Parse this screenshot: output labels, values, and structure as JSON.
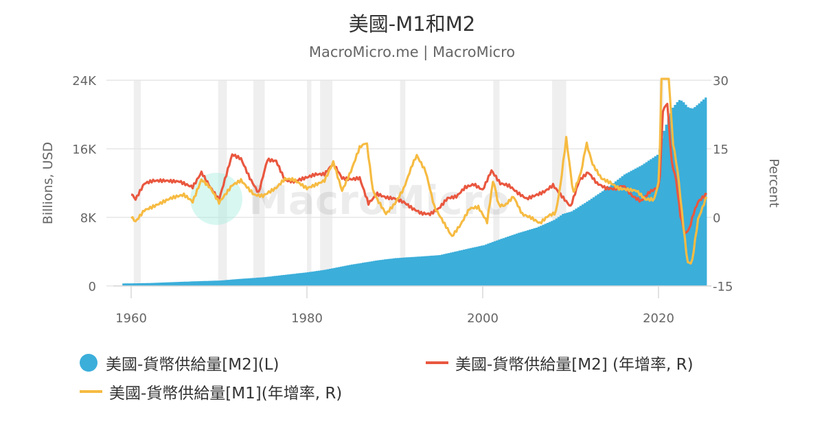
{
  "header": {
    "title": "美國-M1和M2",
    "subtitle": "MacroMicro.me | MacroMicro"
  },
  "watermark": {
    "text": "MacroMicro"
  },
  "colors": {
    "m2_level": "#3BAEDA",
    "m2_yoy": "#E9573F",
    "m1_yoy": "#F6BB42",
    "recession": "#EFEFEF",
    "grid": "#E6E6E6"
  },
  "legend": {
    "items": [
      {
        "label": "美國-貨幣供給量[M2](L)",
        "color": "#3BAEDA",
        "marker": "circle"
      },
      {
        "label": "美國-貨幣供給量[M2] (年增率, R)",
        "color": "#E9573F",
        "marker": "line"
      },
      {
        "label": "美國-貨幣供給量[M1](年增率, R)",
        "color": "#F6BB42",
        "marker": "line"
      }
    ]
  },
  "chart_data": {
    "type": "area+line",
    "title": "美國-M1和M2",
    "subtitle": "MacroMicro.me | MacroMicro",
    "xlabel": "",
    "ylabel_left": "Billions, USD",
    "ylabel_right": "Percent",
    "x_ticks": [
      "1960",
      "1980",
      "2000",
      "2020"
    ],
    "y_left_ticks": [
      "0",
      "8K",
      "16K",
      "24K"
    ],
    "y_left_range": [
      0,
      24000
    ],
    "y_right_ticks": [
      "-15",
      "0",
      "15",
      "30"
    ],
    "y_right_range": [
      -15,
      30
    ],
    "grid": true,
    "legend_position": "bottom",
    "recessions": [
      [
        1960.3,
        1961.1
      ],
      [
        1969.9,
        1970.9
      ],
      [
        1973.9,
        1975.2
      ],
      [
        1980.0,
        1980.5
      ],
      [
        1981.5,
        1982.9
      ],
      [
        1990.6,
        1991.2
      ],
      [
        2001.2,
        2001.9
      ],
      [
        2007.9,
        2009.5
      ],
      [
        2020.1,
        2020.4
      ]
    ],
    "series": [
      {
        "name": "美國-貨幣供給量[M2](L)",
        "axis": "left",
        "type": "area",
        "x": [
          1959,
          1962,
          1965,
          1968,
          1970,
          1972,
          1975,
          1978,
          1980,
          1982,
          1985,
          1988,
          1990,
          1993,
          1995,
          1998,
          2000,
          2002,
          2004,
          2006,
          2008,
          2009,
          2010,
          2012,
          2014,
          2016,
          2018,
          2019.9,
          2020.3,
          2020.6,
          2021,
          2021.5,
          2022.2,
          2022.6,
          2023.3,
          2023.8,
          2024.5,
          2025.5
        ],
        "values": [
          290,
          340,
          460,
          570,
          630,
          800,
          1020,
          1370,
          1600,
          1900,
          2500,
          3000,
          3250,
          3450,
          3600,
          4300,
          4750,
          5500,
          6200,
          6800,
          7700,
          8400,
          8700,
          10000,
          11400,
          13000,
          14100,
          15400,
          17500,
          18400,
          19500,
          20800,
          21700,
          21600,
          20800,
          20700,
          21300,
          22200
        ]
      },
      {
        "name": "美國-貨幣供給量[M2] (年增率, R)",
        "axis": "right",
        "type": "line",
        "x": [
          1960,
          1960.5,
          1961.5,
          1962.5,
          1964,
          1965.5,
          1967,
          1968,
          1969,
          1970,
          1971.5,
          1972.5,
          1973.5,
          1974.5,
          1975.5,
          1976.5,
          1977.5,
          1978.5,
          1980,
          1981,
          1982,
          1983,
          1984,
          1985,
          1986,
          1987,
          1988,
          1989,
          1990,
          1991,
          1992,
          1993,
          1994,
          1995,
          1996,
          1997,
          1998,
          1999,
          2000,
          2001,
          2002,
          2003,
          2004,
          2005,
          2006,
          2007,
          2008,
          2009,
          2010,
          2011,
          2012,
          2013,
          2014,
          2015,
          2016,
          2017,
          2018,
          2019,
          2020.1,
          2020.5,
          2021,
          2021.5,
          2022,
          2022.5,
          2023,
          2023.5,
          2024,
          2024.5,
          2025.5
        ],
        "values": [
          4.8,
          3.5,
          7.0,
          7.8,
          8.2,
          8.3,
          7.0,
          10.0,
          6.5,
          3.5,
          13.3,
          12.5,
          8.5,
          5.5,
          13.0,
          12.8,
          8.5,
          8.0,
          8.5,
          9.0,
          9.0,
          11.5,
          8.5,
          8.5,
          9.0,
          3.5,
          5.5,
          4.5,
          4.0,
          3.0,
          1.5,
          0.5,
          0.5,
          2.0,
          4.5,
          5.0,
          7.0,
          7.5,
          6.0,
          10.0,
          7.0,
          6.5,
          5.0,
          4.0,
          5.0,
          6.0,
          7.5,
          5.0,
          2.5,
          8.0,
          9.5,
          7.0,
          6.0,
          6.0,
          7.0,
          5.0,
          4.0,
          6.0,
          7.0,
          23.5,
          25.0,
          12.0,
          8.0,
          0.0,
          -4.0,
          -3.0,
          0.5,
          3.0,
          5.0
        ]
      },
      {
        "name": "美國-貨幣供給量[M1](年增率, R)",
        "axis": "right",
        "type": "line",
        "x": [
          1960,
          1960.5,
          1961.5,
          1963,
          1964.5,
          1966,
          1967,
          1968,
          1969,
          1970,
          1971.5,
          1972.5,
          1974,
          1975,
          1976.5,
          1977.5,
          1978.5,
          1980,
          1981,
          1982,
          1983,
          1984,
          1985,
          1986,
          1986.8,
          1987.5,
          1988,
          1989,
          1990,
          1991,
          1992,
          1992.5,
          1993.5,
          1994.5,
          1995.5,
          1996.5,
          1997.5,
          1998.5,
          1999.5,
          2000.5,
          2001.2,
          2001.8,
          2002.5,
          2003.5,
          2004.5,
          2005.5,
          2006.5,
          2007.5,
          2008.3,
          2008.8,
          2009.5,
          2010.3,
          2011.2,
          2011.8,
          2012.5,
          2013.5,
          2014.5,
          2015.5,
          2016.5,
          2017.5,
          2018.5,
          2019.5,
          2020.1,
          2020.3,
          2020.8,
          2021.2,
          2021.6,
          2022.2,
          2022.8,
          2023.3,
          2023.8,
          2024.5,
          2025.5
        ],
        "values": [
          0.5,
          -0.5,
          2.0,
          3.0,
          4.0,
          4.5,
          3.0,
          8.0,
          6.5,
          3.5,
          7.5,
          8.5,
          5.0,
          4.5,
          6.0,
          8.0,
          8.0,
          6.5,
          7.5,
          8.5,
          12.5,
          6.0,
          10.0,
          15.0,
          16.0,
          5.5,
          3.5,
          0.5,
          3.0,
          6.5,
          12.0,
          14.0,
          10.5,
          2.5,
          -1.0,
          -4.5,
          -2.0,
          1.5,
          2.0,
          -1.0,
          8.5,
          3.0,
          3.0,
          5.0,
          1.0,
          0.0,
          -1.5,
          0.0,
          0.5,
          6.0,
          17.0,
          5.0,
          10.0,
          16.5,
          12.0,
          9.0,
          8.0,
          6.5,
          6.0,
          5.5,
          3.5,
          3.5,
          8.0,
          31.0,
          33.0,
          30.0,
          17.0,
          10.0,
          -1.0,
          -9.5,
          -9.5,
          0.0,
          5.0
        ]
      }
    ]
  }
}
